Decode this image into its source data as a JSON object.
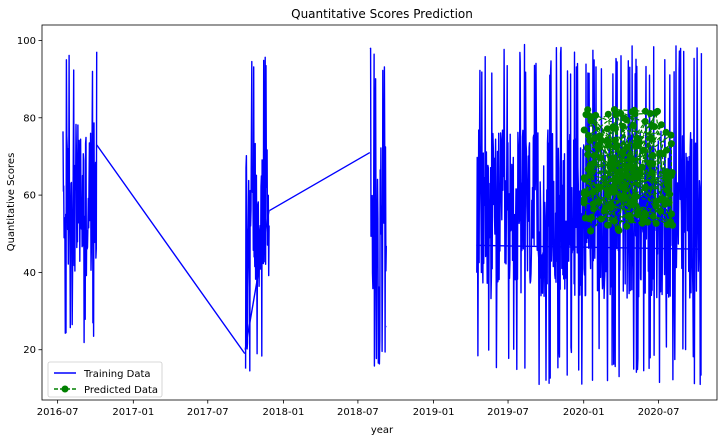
{
  "chart_data": {
    "type": "line",
    "title": "Quantitative Scores Prediction",
    "xlabel": "year",
    "ylabel": "Quantitative Scores",
    "ylim": [
      7,
      104
    ],
    "xlim": [
      "2016-05-24",
      "2020-11-20"
    ],
    "yticks": [
      20,
      40,
      60,
      80,
      100
    ],
    "xticks": [
      {
        "date": "2016-07-01",
        "label": "2016-07"
      },
      {
        "date": "2017-01-01",
        "label": "2017-01"
      },
      {
        "date": "2017-07-01",
        "label": "2017-07"
      },
      {
        "date": "2018-01-01",
        "label": "2018-01"
      },
      {
        "date": "2018-07-01",
        "label": "2018-07"
      },
      {
        "date": "2019-01-01",
        "label": "2019-01"
      },
      {
        "date": "2019-07-01",
        "label": "2019-07"
      },
      {
        "date": "2020-01-01",
        "label": "2020-01"
      },
      {
        "date": "2020-07-01",
        "label": "2020-07"
      }
    ],
    "grid": false,
    "legend_position": "bottom-left",
    "series": [
      {
        "name": "Training Data",
        "color": "#0000ff",
        "style": "solid",
        "segments": [
          {
            "start": "2016-07-14",
            "end": "2016-10-04",
            "min": 18,
            "max": 99
          },
          {
            "start": "2017-10-01",
            "end": "2017-11-27",
            "min": 14,
            "max": 98
          },
          {
            "start": "2018-07-31",
            "end": "2018-09-08",
            "min": 15,
            "max": 98
          },
          {
            "start": "2019-04-16",
            "end": "2020-10-13",
            "min": 11,
            "max": 99
          }
        ],
        "connectors": [
          {
            "x": "2016-10-04",
            "y": 73
          },
          {
            "x": "2017-09-29",
            "y": 19
          },
          {
            "x": "2017-09-30",
            "y": 20
          },
          {
            "x": "2017-11-27",
            "y": 56
          },
          {
            "x": "2017-11-28",
            "y": 56
          },
          {
            "x": "2018-07-30",
            "y": 71
          },
          {
            "x": "2018-09-08",
            "y": 26
          },
          {
            "x": "2018-09-09",
            "y": 26
          },
          {
            "x": "2019-04-15",
            "y": 47
          },
          {
            "x": "2020-10-13",
            "y": 46
          }
        ]
      },
      {
        "name": "Predicted Data",
        "color": "#008000",
        "style": "dashed-marker",
        "segments": [
          {
            "start": "2020-01-01",
            "end": "2020-08-05",
            "min": 47,
            "max": 84
          }
        ]
      }
    ]
  }
}
